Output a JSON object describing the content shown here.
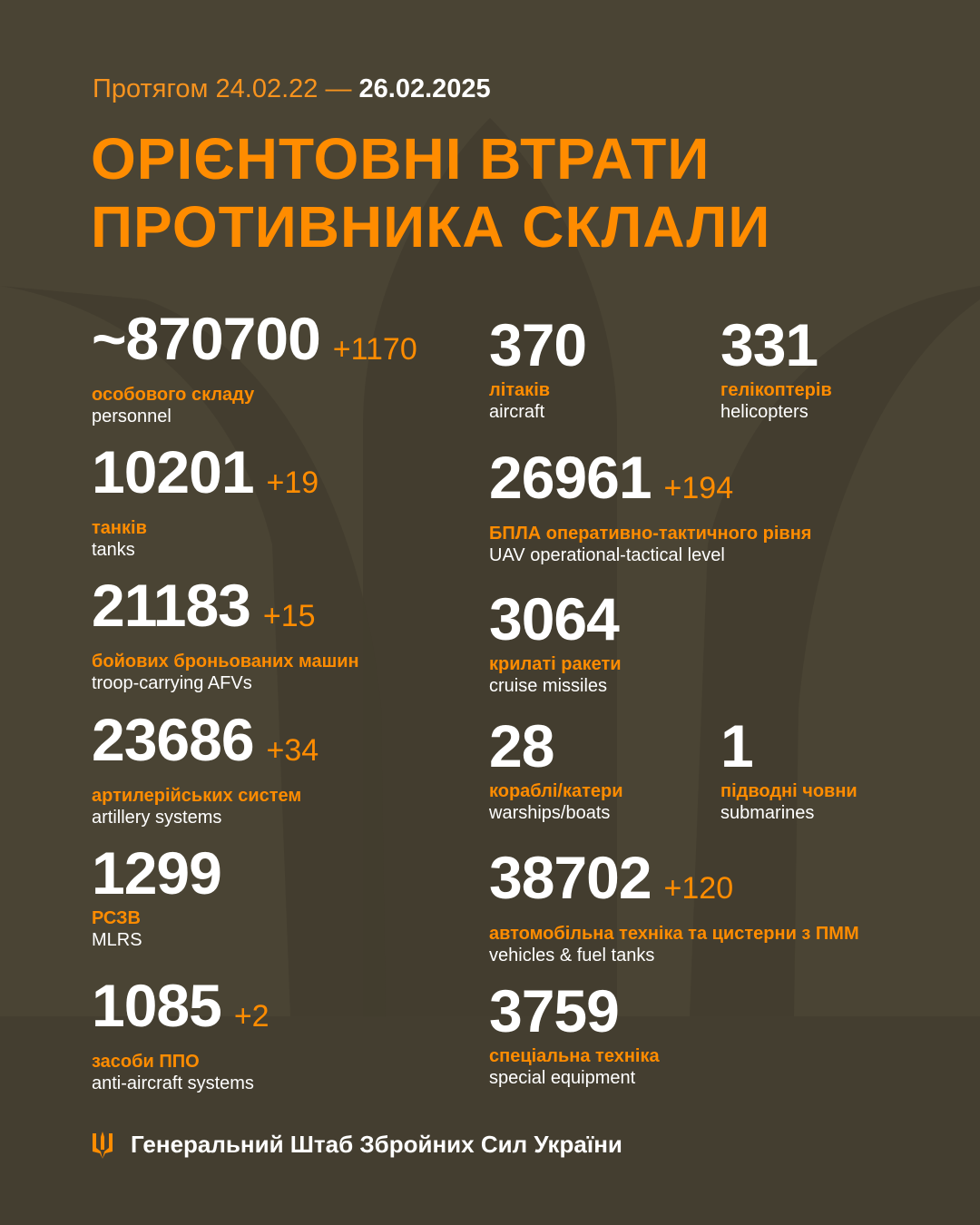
{
  "colors": {
    "background": "#4a4434",
    "accent": "#ff8c00",
    "text": "#ffffff"
  },
  "header": {
    "period_prefix": "Протягом 24.02.22 —",
    "period_end": "26.02.2025",
    "title_line1": "ОРІЄНТОВНІ ВТРАТИ",
    "title_line2": "ПРОТИВНИКА СКЛАЛИ"
  },
  "stats": [
    {
      "value": "~870700",
      "delta": "+1170",
      "ua": "особового складу",
      "en": "personnel"
    },
    {
      "value": "10201",
      "delta": "+19",
      "ua": "танків",
      "en": "tanks"
    },
    {
      "value": "21183",
      "delta": "+15",
      "ua": "бойових броньованих машин",
      "en": "troop-carrying AFVs"
    },
    {
      "value": "23686",
      "delta": "+34",
      "ua": "артилерійських систем",
      "en": "artillery systems"
    },
    {
      "value": "1299",
      "delta": "",
      "ua": "РСЗВ",
      "en": "MLRS"
    },
    {
      "value": "1085",
      "delta": "+2",
      "ua": "засоби ППО",
      "en": "anti-aircraft systems"
    },
    {
      "value": "370",
      "delta": "",
      "ua": "літаків",
      "en": "aircraft"
    },
    {
      "value": "331",
      "delta": "",
      "ua": "гелікоптерів",
      "en": "helicopters"
    },
    {
      "value": "26961",
      "delta": "+194",
      "ua": "БПЛА оперативно-тактичного рівня",
      "en": "UAV operational-tactical level"
    },
    {
      "value": "3064",
      "delta": "",
      "ua": "крилаті ракети",
      "en": "cruise missiles"
    },
    {
      "value": "28",
      "delta": "",
      "ua": "кораблі/катери",
      "en": "warships/boats"
    },
    {
      "value": "1",
      "delta": "",
      "ua": "підводні човни",
      "en": "submarines"
    },
    {
      "value": "38702",
      "delta": "+120",
      "ua": "автомобільна техніка та цистерни з ПММ",
      "en": "vehicles & fuel tanks"
    },
    {
      "value": "3759",
      "delta": "",
      "ua": "спеціальна техніка",
      "en": "special equipment"
    }
  ],
  "footer": {
    "icon": "trident-icon",
    "text": "Генеральний Штаб Збройних Сил України"
  }
}
